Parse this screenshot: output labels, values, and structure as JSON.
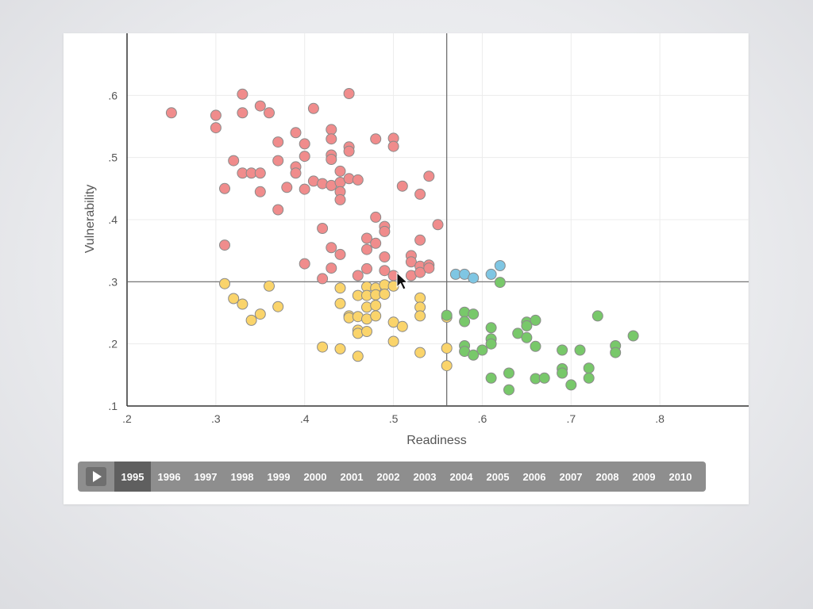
{
  "chart_data": {
    "type": "scatter",
    "xlabel": "Readiness",
    "ylabel": "Vulnerability",
    "xlim": [
      0.2,
      0.9
    ],
    "ylim": [
      0.1,
      0.7
    ],
    "x_ticks": [
      ".2",
      ".3",
      ".4",
      ".5",
      ".6",
      ".7",
      ".8"
    ],
    "x_tick_values": [
      0.2,
      0.3,
      0.4,
      0.5,
      0.6,
      0.7,
      0.8
    ],
    "y_ticks": [
      ".1",
      ".2",
      ".3",
      ".4",
      ".5",
      ".6"
    ],
    "y_tick_values": [
      0.1,
      0.2,
      0.3,
      0.4,
      0.5,
      0.6
    ],
    "grid": true,
    "reference_lines": {
      "x": 0.56,
      "y": 0.3
    },
    "colors": {
      "red": "#f08c8c",
      "yellow": "#fad46b",
      "blue": "#7fc6e3",
      "green": "#78c86a",
      "stroke": "#8a8a8a"
    },
    "series": [
      {
        "color": "red",
        "points": [
          [
            0.25,
            0.572
          ],
          [
            0.3,
            0.568
          ],
          [
            0.3,
            0.548
          ],
          [
            0.33,
            0.602
          ],
          [
            0.33,
            0.572
          ],
          [
            0.35,
            0.583
          ],
          [
            0.36,
            0.572
          ],
          [
            0.41,
            0.579
          ],
          [
            0.45,
            0.603
          ],
          [
            0.32,
            0.495
          ],
          [
            0.31,
            0.45
          ],
          [
            0.33,
            0.475
          ],
          [
            0.34,
            0.475
          ],
          [
            0.35,
            0.475
          ],
          [
            0.35,
            0.445
          ],
          [
            0.37,
            0.495
          ],
          [
            0.37,
            0.525
          ],
          [
            0.39,
            0.54
          ],
          [
            0.38,
            0.452
          ],
          [
            0.39,
            0.485
          ],
          [
            0.39,
            0.475
          ],
          [
            0.4,
            0.522
          ],
          [
            0.4,
            0.502
          ],
          [
            0.4,
            0.449
          ],
          [
            0.41,
            0.462
          ],
          [
            0.42,
            0.458
          ],
          [
            0.43,
            0.545
          ],
          [
            0.43,
            0.53
          ],
          [
            0.43,
            0.504
          ],
          [
            0.43,
            0.497
          ],
          [
            0.43,
            0.455
          ],
          [
            0.44,
            0.478
          ],
          [
            0.44,
            0.46
          ],
          [
            0.44,
            0.445
          ],
          [
            0.44,
            0.432
          ],
          [
            0.45,
            0.517
          ],
          [
            0.45,
            0.51
          ],
          [
            0.45,
            0.466
          ],
          [
            0.46,
            0.464
          ],
          [
            0.48,
            0.53
          ],
          [
            0.5,
            0.531
          ],
          [
            0.5,
            0.518
          ],
          [
            0.51,
            0.454
          ],
          [
            0.53,
            0.441
          ],
          [
            0.54,
            0.47
          ],
          [
            0.37,
            0.416
          ],
          [
            0.31,
            0.359
          ],
          [
            0.42,
            0.386
          ],
          [
            0.43,
            0.355
          ],
          [
            0.44,
            0.344
          ],
          [
            0.4,
            0.329
          ],
          [
            0.43,
            0.322
          ],
          [
            0.42,
            0.305
          ],
          [
            0.47,
            0.37
          ],
          [
            0.48,
            0.404
          ],
          [
            0.49,
            0.389
          ],
          [
            0.49,
            0.381
          ],
          [
            0.48,
            0.362
          ],
          [
            0.47,
            0.352
          ],
          [
            0.49,
            0.34
          ],
          [
            0.47,
            0.321
          ],
          [
            0.46,
            0.31
          ],
          [
            0.49,
            0.318
          ],
          [
            0.5,
            0.31
          ],
          [
            0.52,
            0.342
          ],
          [
            0.52,
            0.332
          ],
          [
            0.53,
            0.367
          ],
          [
            0.55,
            0.392
          ],
          [
            0.53,
            0.325
          ],
          [
            0.54,
            0.327
          ],
          [
            0.52,
            0.31
          ],
          [
            0.53,
            0.315
          ],
          [
            0.54,
            0.322
          ]
        ]
      },
      {
        "color": "yellow",
        "points": [
          [
            0.31,
            0.297
          ],
          [
            0.32,
            0.273
          ],
          [
            0.33,
            0.264
          ],
          [
            0.34,
            0.238
          ],
          [
            0.35,
            0.248
          ],
          [
            0.36,
            0.293
          ],
          [
            0.37,
            0.26
          ],
          [
            0.44,
            0.29
          ],
          [
            0.44,
            0.265
          ],
          [
            0.45,
            0.245
          ],
          [
            0.45,
            0.242
          ],
          [
            0.46,
            0.278
          ],
          [
            0.46,
            0.244
          ],
          [
            0.46,
            0.222
          ],
          [
            0.46,
            0.217
          ],
          [
            0.47,
            0.292
          ],
          [
            0.47,
            0.278
          ],
          [
            0.47,
            0.259
          ],
          [
            0.47,
            0.24
          ],
          [
            0.47,
            0.22
          ],
          [
            0.48,
            0.29
          ],
          [
            0.48,
            0.279
          ],
          [
            0.48,
            0.262
          ],
          [
            0.48,
            0.245
          ],
          [
            0.49,
            0.295
          ],
          [
            0.49,
            0.28
          ],
          [
            0.5,
            0.293
          ],
          [
            0.5,
            0.235
          ],
          [
            0.51,
            0.228
          ],
          [
            0.5,
            0.204
          ],
          [
            0.53,
            0.274
          ],
          [
            0.53,
            0.259
          ],
          [
            0.53,
            0.245
          ],
          [
            0.53,
            0.186
          ],
          [
            0.56,
            0.243
          ],
          [
            0.56,
            0.193
          ],
          [
            0.56,
            0.165
          ],
          [
            0.42,
            0.195
          ],
          [
            0.44,
            0.192
          ],
          [
            0.46,
            0.18
          ]
        ]
      },
      {
        "color": "blue",
        "points": [
          [
            0.57,
            0.312
          ],
          [
            0.58,
            0.312
          ],
          [
            0.59,
            0.306
          ],
          [
            0.61,
            0.312
          ],
          [
            0.62,
            0.326
          ]
        ]
      },
      {
        "color": "green",
        "points": [
          [
            0.62,
            0.299
          ],
          [
            0.56,
            0.246
          ],
          [
            0.58,
            0.251
          ],
          [
            0.58,
            0.236
          ],
          [
            0.59,
            0.248
          ],
          [
            0.58,
            0.197
          ],
          [
            0.58,
            0.188
          ],
          [
            0.59,
            0.182
          ],
          [
            0.6,
            0.19
          ],
          [
            0.61,
            0.226
          ],
          [
            0.61,
            0.208
          ],
          [
            0.61,
            0.2
          ],
          [
            0.61,
            0.145
          ],
          [
            0.63,
            0.153
          ],
          [
            0.63,
            0.126
          ],
          [
            0.64,
            0.217
          ],
          [
            0.65,
            0.235
          ],
          [
            0.65,
            0.229
          ],
          [
            0.65,
            0.21
          ],
          [
            0.66,
            0.238
          ],
          [
            0.66,
            0.196
          ],
          [
            0.66,
            0.144
          ],
          [
            0.67,
            0.145
          ],
          [
            0.69,
            0.19
          ],
          [
            0.69,
            0.16
          ],
          [
            0.69,
            0.153
          ],
          [
            0.7,
            0.134
          ],
          [
            0.71,
            0.19
          ],
          [
            0.72,
            0.161
          ],
          [
            0.72,
            0.145
          ],
          [
            0.73,
            0.245
          ],
          [
            0.75,
            0.197
          ],
          [
            0.75,
            0.186
          ],
          [
            0.77,
            0.213
          ]
        ]
      }
    ]
  },
  "timeline": {
    "years": [
      "1995",
      "1996",
      "1997",
      "1998",
      "1999",
      "2000",
      "2001",
      "2002",
      "2003",
      "2004",
      "2005",
      "2006",
      "2007",
      "2008",
      "2009",
      "2010"
    ],
    "selected": "1995"
  }
}
